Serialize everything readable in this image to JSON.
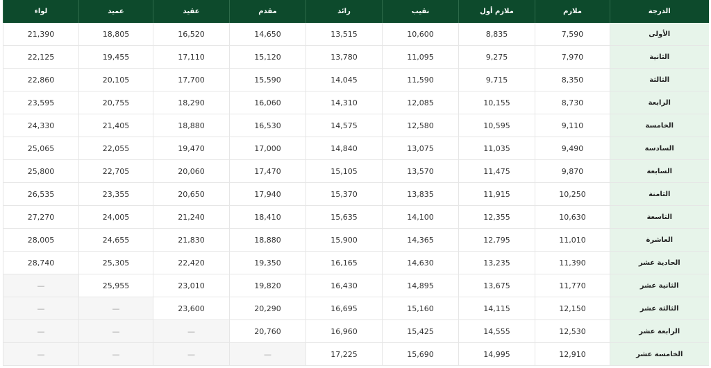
{
  "table": {
    "headers": [
      "الدرجة",
      "ملازم",
      "ملازم أول",
      "نقيب",
      "رائد",
      "مقدم",
      "عقيد",
      "عميد",
      "لواء"
    ],
    "rows": [
      [
        "الأولى",
        "7,590",
        "8,835",
        "10,600",
        "13,515",
        "14,650",
        "16,520",
        "18,805",
        "21,390"
      ],
      [
        "الثانية",
        "7,970",
        "9,275",
        "11,095",
        "13,780",
        "15,120",
        "17,110",
        "19,455",
        "22,125"
      ],
      [
        "الثالثة",
        "8,350",
        "9,715",
        "11,590",
        "14,045",
        "15,590",
        "17,700",
        "20,105",
        "22,860"
      ],
      [
        "الرابعة",
        "8,730",
        "10,155",
        "12,085",
        "14,310",
        "16,060",
        "18,290",
        "20,755",
        "23,595"
      ],
      [
        "الخامسة",
        "9,110",
        "10,595",
        "12,580",
        "14,575",
        "16,530",
        "18,880",
        "21,405",
        "24,330"
      ],
      [
        "السادسة",
        "9,490",
        "11,035",
        "13,075",
        "14,840",
        "17,000",
        "19,470",
        "22,055",
        "25,065"
      ],
      [
        "السابعة",
        "9,870",
        "11,475",
        "13,570",
        "15,105",
        "17,470",
        "20,060",
        "22,705",
        "25,800"
      ],
      [
        "الثامنة",
        "10,250",
        "11,915",
        "13,835",
        "15,370",
        "17,940",
        "20,650",
        "23,355",
        "26,535"
      ],
      [
        "التاسعة",
        "10,630",
        "12,355",
        "14,100",
        "15,635",
        "18,410",
        "21,240",
        "24,005",
        "27,270"
      ],
      [
        "العاشرة",
        "11,010",
        "12,795",
        "14,365",
        "15,900",
        "18,880",
        "21,830",
        "24,655",
        "28,005"
      ],
      [
        "الحادية عشر",
        "11,390",
        "13,235",
        "14,630",
        "16,165",
        "19,350",
        "22,420",
        "25,305",
        "28,740"
      ],
      [
        "الثانية عشر",
        "11,770",
        "13,675",
        "14,895",
        "16,430",
        "19,820",
        "23,010",
        "25,955",
        "—"
      ],
      [
        "الثالثة عشر",
        "12,150",
        "14,115",
        "15,160",
        "16,695",
        "20,290",
        "23,600",
        "—",
        "—"
      ],
      [
        "الرابعة عشر",
        "12,530",
        "14,555",
        "15,425",
        "16,960",
        "20,760",
        "—",
        "—",
        "—"
      ],
      [
        "الخامسة عشر",
        "12,910",
        "14,995",
        "15,690",
        "17,225",
        "—",
        "—",
        "—",
        "—"
      ]
    ]
  }
}
